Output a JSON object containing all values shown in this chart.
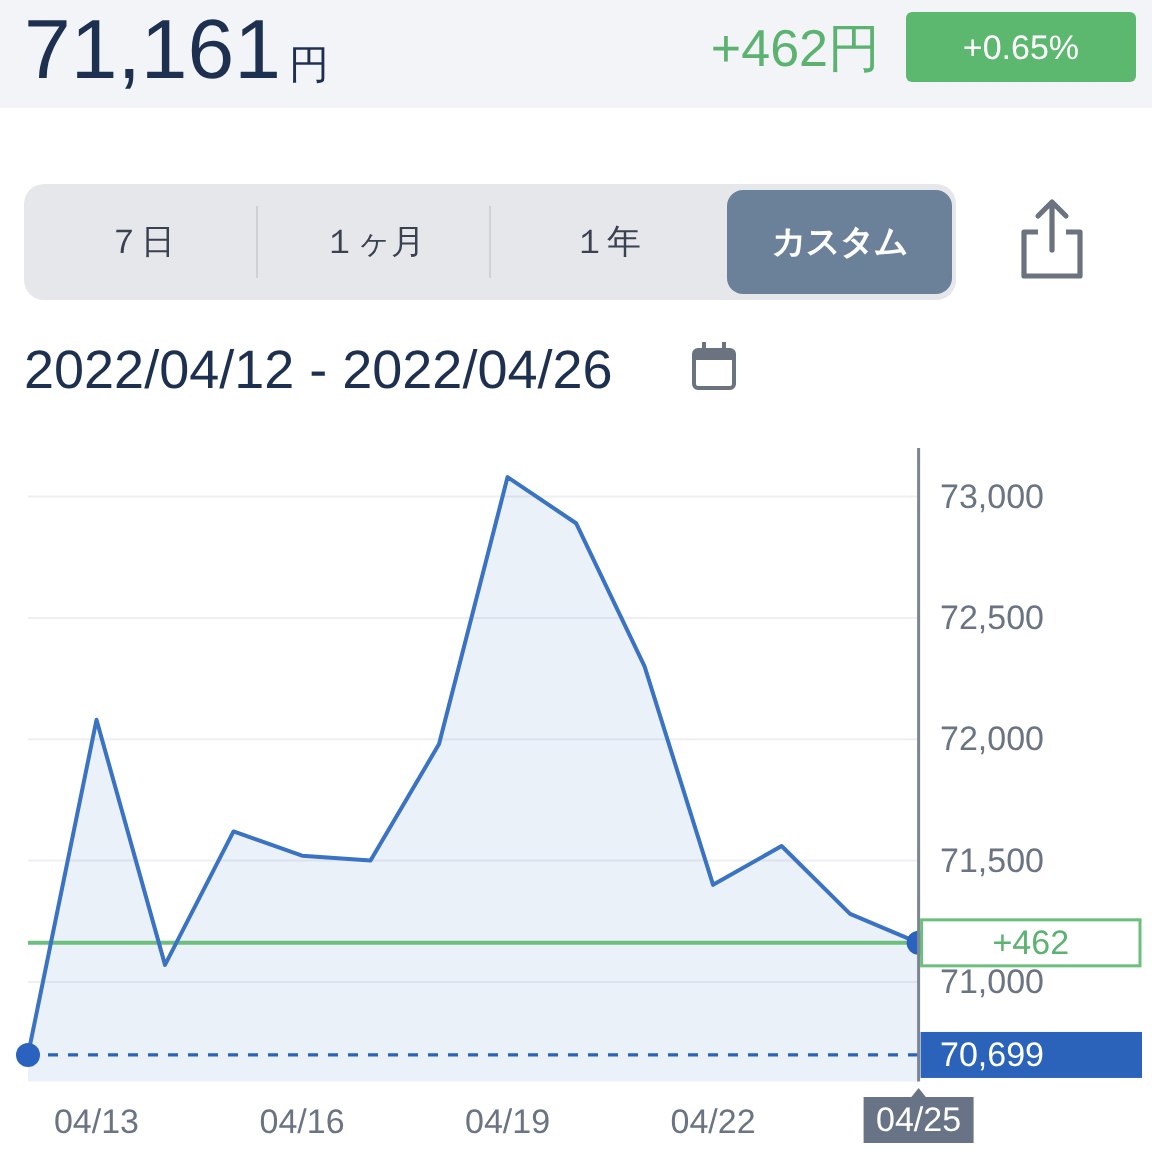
{
  "chart_data": {
    "type": "area",
    "title": "71,161円",
    "subtitle": "2022/04/12 - 2022/04/26",
    "annotations": [
      "+462円",
      "+0.65%",
      "７日",
      "１ヶ月",
      "１年",
      "カスタム",
      {
        "text": "+462",
        "x": "2022-04-25",
        "y": 71161
      }
    ],
    "x": [
      "2022-04-12",
      "2022-04-13",
      "2022-04-14",
      "2022-04-15",
      "2022-04-16",
      "2022-04-17",
      "2022-04-18",
      "2022-04-19",
      "2022-04-20",
      "2022-04-21",
      "2022-04-22",
      "2022-04-23",
      "2022-04-24",
      "2022-04-25"
    ],
    "series": [
      {
        "color": "#3a72c4",
        "marker": "none",
        "values": [
          70699,
          72080,
          71070,
          71620,
          71520,
          71500,
          71980,
          73080,
          72890,
          72300,
          71400,
          71560,
          71280,
          71161
        ]
      },
      {
        "type": "scatter",
        "color": "#2a62c0",
        "marker": "circle",
        "x": [
          "2022-04-12",
          "2022-04-25"
        ],
        "values": [
          70699,
          71161
        ]
      }
    ],
    "xlim": [
      "2022-04-12",
      "2022-04-25"
    ],
    "xticks": [
      {
        "value": "2022-04-13",
        "label": "04/13"
      },
      {
        "value": "2022-04-16",
        "label": "04/16"
      },
      {
        "value": "2022-04-19",
        "label": "04/19"
      },
      {
        "value": "2022-04-22",
        "label": "04/22"
      },
      {
        "value": "2022-04-25",
        "label": "04/25"
      }
    ],
    "ylim": [
      70590,
      73200
    ],
    "yticks": [
      {
        "value": 71000,
        "label": "71,000"
      },
      {
        "value": 71500,
        "label": "71,500"
      },
      {
        "value": 72000,
        "label": "72,000"
      },
      {
        "value": 72500,
        "label": "72,500"
      },
      {
        "value": 73000,
        "label": "73,000"
      }
    ],
    "grid": "y",
    "ref_lines": [
      {
        "axis": "y",
        "value": 71161,
        "color": "#6cbf7c",
        "line_style": "solid"
      },
      {
        "axis": "y",
        "value": 70699,
        "label": "70,699",
        "color": "#2c63ba",
        "line_style": "dashed"
      }
    ]
  }
}
